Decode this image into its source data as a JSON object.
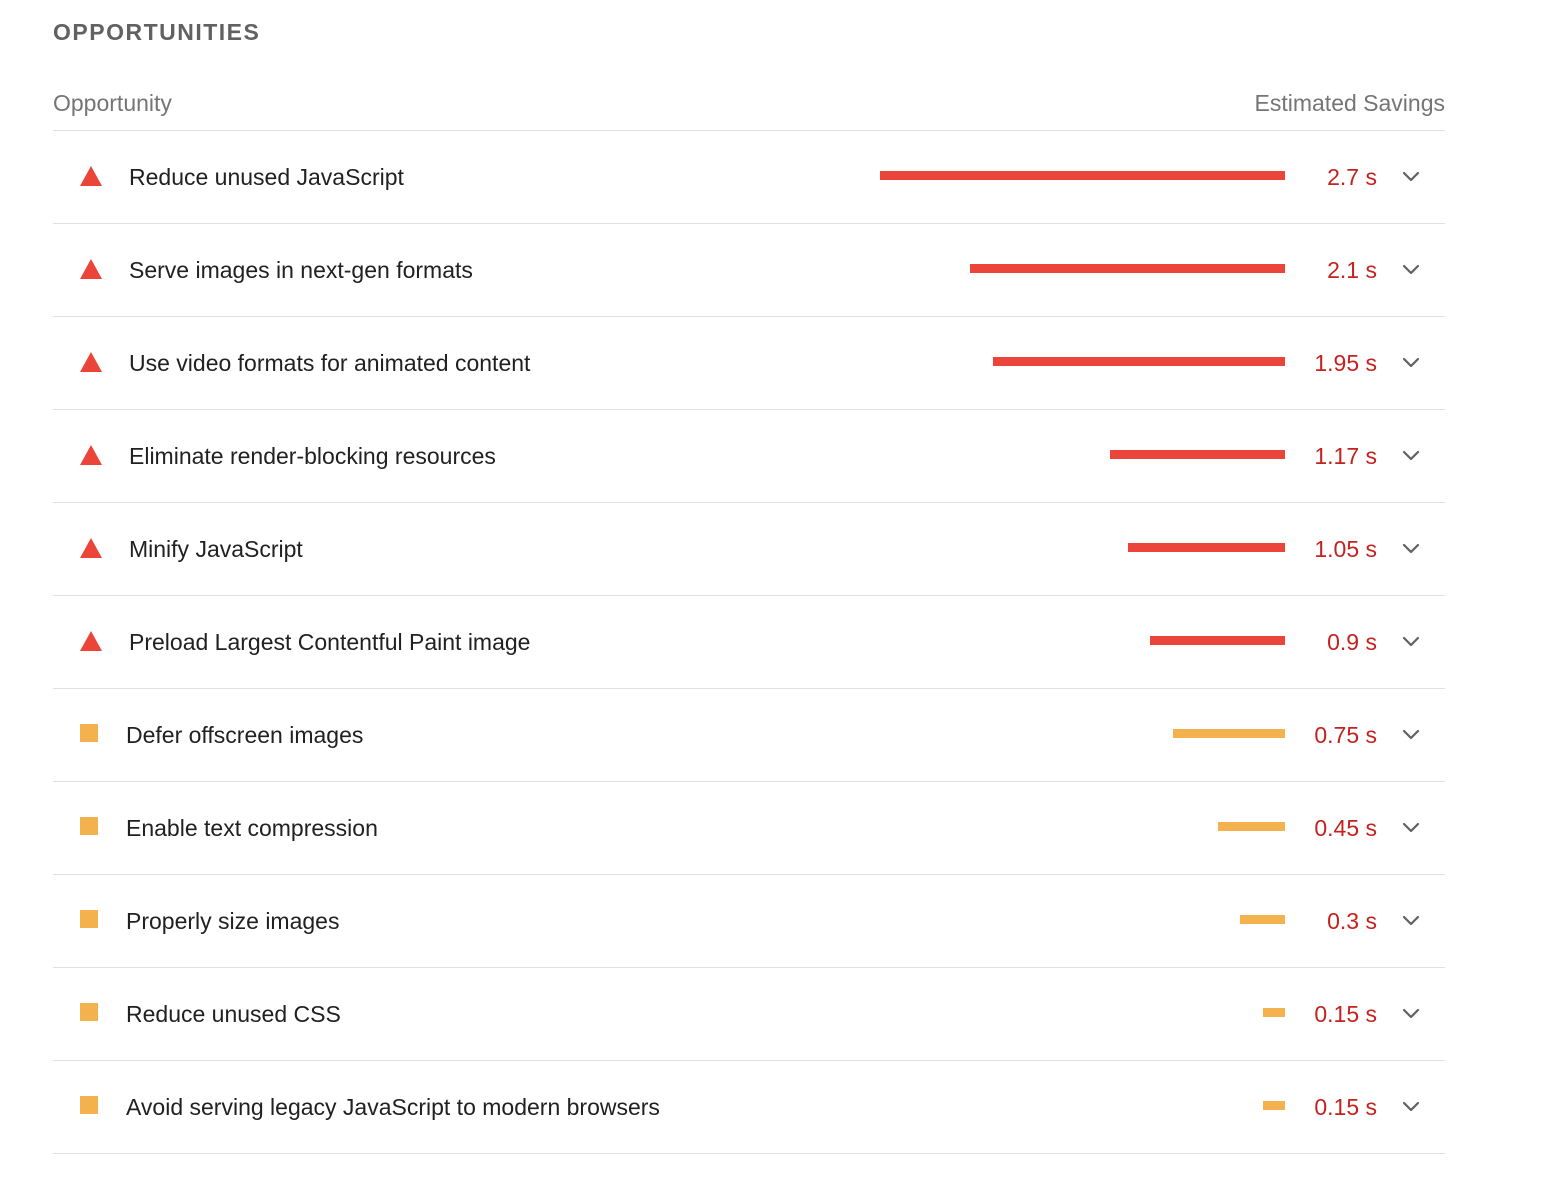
{
  "section": {
    "title": "OPPORTUNITIES",
    "header_left": "Opportunity",
    "header_right": "Estimated Savings"
  },
  "colors": {
    "fail": "#eb4438",
    "average": "#f4b24f",
    "value_text": "#c5221f"
  },
  "max_savings_seconds": 2.7,
  "opportunities": [
    {
      "title": "Reduce unused JavaScript",
      "value": "2.7 s",
      "seconds": 2.7,
      "rating": "fail",
      "icon": "warning-triangle-icon"
    },
    {
      "title": "Serve images in next-gen formats",
      "value": "2.1 s",
      "seconds": 2.1,
      "rating": "fail",
      "icon": "warning-triangle-icon"
    },
    {
      "title": "Use video formats for animated content",
      "value": "1.95 s",
      "seconds": 1.95,
      "rating": "fail",
      "icon": "warning-triangle-icon"
    },
    {
      "title": "Eliminate render-blocking resources",
      "value": "1.17 s",
      "seconds": 1.17,
      "rating": "fail",
      "icon": "warning-triangle-icon"
    },
    {
      "title": "Minify JavaScript",
      "value": "1.05 s",
      "seconds": 1.05,
      "rating": "fail",
      "icon": "warning-triangle-icon"
    },
    {
      "title": "Preload Largest Contentful Paint image",
      "value": "0.9 s",
      "seconds": 0.9,
      "rating": "fail",
      "icon": "warning-triangle-icon"
    },
    {
      "title": "Defer offscreen images",
      "value": "0.75 s",
      "seconds": 0.75,
      "rating": "average",
      "icon": "average-square-icon"
    },
    {
      "title": "Enable text compression",
      "value": "0.45 s",
      "seconds": 0.45,
      "rating": "average",
      "icon": "average-square-icon"
    },
    {
      "title": "Properly size images",
      "value": "0.3 s",
      "seconds": 0.3,
      "rating": "average",
      "icon": "average-square-icon"
    },
    {
      "title": "Reduce unused CSS",
      "value": "0.15 s",
      "seconds": 0.15,
      "rating": "average",
      "icon": "average-square-icon"
    },
    {
      "title": "Avoid serving legacy JavaScript to modern browsers",
      "value": "0.15 s",
      "seconds": 0.15,
      "rating": "average",
      "icon": "average-square-icon"
    }
  ]
}
